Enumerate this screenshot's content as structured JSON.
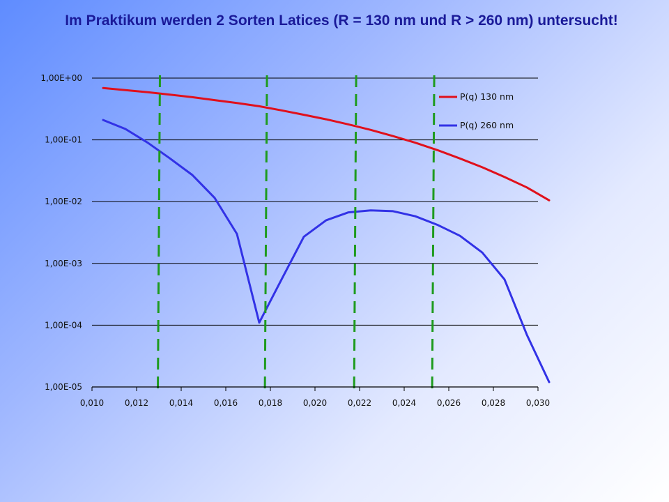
{
  "slide": {
    "title": "Im Praktikum werden 2 Sorten Latices (R = 130 nm und R > 260 nm) untersucht!"
  },
  "colors": {
    "series_130": "#e0101c",
    "series_260": "#3232e6",
    "marker_lines": "#1e9b1e",
    "gridline": "#000000"
  },
  "chart_data": {
    "type": "line",
    "title": "",
    "xlabel": "",
    "ylabel": "",
    "xlim": [
      0.01,
      0.03
    ],
    "ylim": [
      1e-05,
      1
    ],
    "y_scale": "log",
    "grid": "horizontal",
    "legend_position": "top-right",
    "x_tick_labels": [
      "0,010",
      "0,012",
      "0,014",
      "0,016",
      "0,018",
      "0,020",
      "0,022",
      "0,024",
      "0,026",
      "0,028",
      "0,030"
    ],
    "x_ticks": [
      0.01,
      0.012,
      0.014,
      0.016,
      0.018,
      0.02,
      0.022,
      0.024,
      0.026,
      0.028,
      0.03
    ],
    "y_tick_labels": [
      "1,00E+00",
      "1,00E-01",
      "1,00E-02",
      "1,00E-03",
      "1,00E-04",
      "1,00E-05"
    ],
    "y_ticks": [
      1,
      0.1,
      0.01,
      0.001,
      0.0001,
      1e-05
    ],
    "vertical_markers": [
      0.013,
      0.0178,
      0.0218,
      0.0253
    ],
    "series": [
      {
        "name": "P(q) 130 nm",
        "color_key": "series_130",
        "x": [
          0.0105,
          0.0115,
          0.0125,
          0.0135,
          0.0145,
          0.0155,
          0.0165,
          0.0175,
          0.0185,
          0.0195,
          0.0205,
          0.0215,
          0.0225,
          0.0235,
          0.0245,
          0.0255,
          0.0265,
          0.0275,
          0.0285,
          0.0295,
          0.0305
        ],
        "values": [
          0.69,
          0.64,
          0.59,
          0.54,
          0.49,
          0.44,
          0.395,
          0.35,
          0.3,
          0.255,
          0.215,
          0.178,
          0.145,
          0.115,
          0.09,
          0.068,
          0.05,
          0.036,
          0.025,
          0.017,
          0.0105
        ]
      },
      {
        "name": "P(q) 260 nm",
        "color_key": "series_260",
        "x": [
          0.0105,
          0.0115,
          0.0125,
          0.0135,
          0.0145,
          0.0155,
          0.0165,
          0.0175,
          0.0185,
          0.0195,
          0.0205,
          0.0215,
          0.0225,
          0.0235,
          0.0245,
          0.0255,
          0.0265,
          0.0275,
          0.0285,
          0.0295,
          0.0305
        ],
        "values": [
          0.21,
          0.15,
          0.09,
          0.05,
          0.027,
          0.0115,
          0.003,
          0.00011,
          0.00055,
          0.0027,
          0.005,
          0.0067,
          0.0072,
          0.007,
          0.0058,
          0.0042,
          0.0028,
          0.0015,
          0.00055,
          7e-05,
          1.2e-05
        ]
      }
    ]
  }
}
